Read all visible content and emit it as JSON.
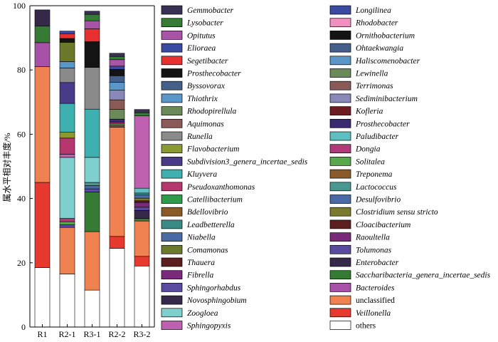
{
  "chart_data": {
    "type": "bar",
    "stacked": true,
    "xlabel": "",
    "ylabel": "属水平相对丰度/%",
    "ylim": [
      0,
      100
    ],
    "yticks": [
      0,
      20,
      40,
      60,
      80,
      100
    ],
    "categories": [
      "R1",
      "R2-1",
      "R3-1",
      "R2-2",
      "R3-2"
    ],
    "legend_position": "right",
    "series": [
      {
        "name": "others",
        "color": "#ffffff",
        "italic": false,
        "values": [
          18.5,
          16.5,
          11.5,
          24.5,
          19
        ]
      },
      {
        "name": "Veillonella",
        "color": "#e8392e",
        "italic": true,
        "values": [
          26.5,
          0,
          0,
          3.7,
          3
        ]
      },
      {
        "name": "unclassified",
        "color": "#f08150",
        "italic": false,
        "values": [
          36,
          14.5,
          18.2,
          34,
          11
        ]
      },
      {
        "name": "Bacteroides",
        "color": "#a851a8",
        "italic": true,
        "values": [
          7.5,
          0,
          0,
          0,
          0
        ]
      },
      {
        "name": "Saccharibacteria_genera_incertae_sedis",
        "color": "#357a35",
        "italic": true,
        "values": [
          5.2,
          0,
          12.3,
          0,
          0.8
        ]
      },
      {
        "name": "Enterobacter",
        "color": "#35284a",
        "italic": true,
        "values": [
          5,
          0,
          0,
          0,
          2.5
        ]
      },
      {
        "name": "Tolumonas",
        "color": "#5a4aa0",
        "italic": true,
        "values": [
          0,
          0.8,
          1,
          0,
          1
        ]
      },
      {
        "name": "Raoultella",
        "color": "#7a2a7a",
        "italic": true,
        "values": [
          0,
          0,
          0,
          0,
          1.5
        ]
      },
      {
        "name": "Cloacibacterium",
        "color": "#5c1e1e",
        "italic": true,
        "values": [
          0,
          0,
          0,
          0,
          0.5
        ]
      },
      {
        "name": "Clostridium sensu stricto",
        "color": "#7a7a2e",
        "italic": true,
        "values": [
          0,
          0,
          0,
          0,
          0.8
        ]
      },
      {
        "name": "Desulfovibrio",
        "color": "#4a6aa5",
        "italic": true,
        "values": [
          0,
          0,
          1,
          0,
          1
        ]
      },
      {
        "name": "Lactococcus",
        "color": "#4a9690",
        "italic": true,
        "values": [
          0,
          0,
          1,
          0,
          0.6
        ]
      },
      {
        "name": "Treponema",
        "color": "#8b5a2b",
        "italic": true,
        "values": [
          0,
          0,
          0,
          0.5,
          0
        ]
      },
      {
        "name": "Solitalea",
        "color": "#57a84a",
        "italic": true,
        "values": [
          0,
          1,
          0,
          0.5,
          0
        ]
      },
      {
        "name": "Dongia",
        "color": "#b23a7a",
        "italic": true,
        "values": [
          0,
          1,
          0,
          0.5,
          0
        ]
      },
      {
        "name": "Zoogloea",
        "color": "#7fcfcf",
        "italic": true,
        "values": [
          0,
          19,
          7.8,
          0,
          0
        ]
      },
      {
        "name": "Paludibacter",
        "color": "#5dbfbf",
        "italic": true,
        "values": [
          0,
          0,
          0,
          0,
          1.5
        ]
      },
      {
        "name": "Prosthecobacter",
        "color": "#3a2a70",
        "italic": true,
        "values": [
          0,
          0,
          0,
          1,
          0
        ]
      },
      {
        "name": "Kofleria",
        "color": "#6e1c22",
        "italic": true,
        "values": [
          0,
          0,
          0,
          0,
          0
        ]
      },
      {
        "name": "Sphingopyxis",
        "color": "#c060b0",
        "italic": true,
        "values": [
          0,
          1,
          0,
          0,
          22.5
        ]
      },
      {
        "name": "Pseudoxanthomonas",
        "color": "#b5376e",
        "italic": true,
        "values": [
          0,
          5,
          0,
          0,
          0
        ]
      },
      {
        "name": "Flavobacterium",
        "color": "#8a9a30",
        "italic": true,
        "values": [
          0,
          1.8,
          0,
          0,
          0
        ]
      },
      {
        "name": "Kluyvera",
        "color": "#3fb0b0",
        "italic": true,
        "values": [
          0,
          9,
          15,
          0,
          0
        ]
      },
      {
        "name": "Subdivision3_genera_incertae_sedis",
        "color": "#4a3a8a",
        "italic": true,
        "values": [
          0,
          6.5,
          0,
          0,
          0
        ]
      },
      {
        "name": "Rhodopirellula",
        "color": "#6a8a5a",
        "italic": true,
        "values": [
          0,
          0,
          0,
          3,
          0
        ]
      },
      {
        "name": "Aquimonas",
        "color": "#8a5a58",
        "italic": true,
        "values": [
          0,
          0,
          0,
          3,
          0
        ]
      },
      {
        "name": "Sediminibacterium",
        "color": "#8a88b8",
        "italic": true,
        "values": [
          0,
          0,
          0,
          3,
          0
        ]
      },
      {
        "name": "Runella",
        "color": "#8a8a8a",
        "italic": true,
        "values": [
          0,
          4.5,
          13,
          0,
          0
        ]
      },
      {
        "name": "Thiothrix",
        "color": "#5a96c8",
        "italic": true,
        "values": [
          0,
          2,
          0,
          2.5,
          0
        ]
      },
      {
        "name": "Comamonas",
        "color": "#6a7a2a",
        "italic": true,
        "values": [
          0,
          6,
          0,
          0,
          0
        ]
      },
      {
        "name": "Byssovorax",
        "color": "#44608a",
        "italic": true,
        "values": [
          0,
          0,
          0,
          2,
          0
        ]
      },
      {
        "name": "Prosthecobacter",
        "color": "#141414",
        "italic": true,
        "values": [
          0,
          1.2,
          8,
          2,
          0
        ]
      },
      {
        "name": "Segetibacter",
        "color": "#e83030",
        "italic": true,
        "values": [
          0,
          1.5,
          4,
          0,
          0
        ]
      },
      {
        "name": "Elioraea",
        "color": "#3a4aa0",
        "italic": true,
        "values": [
          0,
          0.8,
          0,
          1,
          0
        ]
      },
      {
        "name": "Opitutus",
        "color": "#a855a8",
        "italic": true,
        "values": [
          0,
          0,
          2.5,
          2,
          0
        ]
      },
      {
        "name": "Lysobacter",
        "color": "#357a35",
        "italic": true,
        "values": [
          0,
          0,
          2,
          1,
          1
        ]
      },
      {
        "name": "Gemmobacter",
        "color": "#3a3054",
        "italic": true,
        "values": [
          0,
          0,
          1,
          1,
          1
        ]
      }
    ],
    "legend": [
      {
        "name": "Gemmobacter",
        "color": "#3a3054",
        "italic": true
      },
      {
        "name": "Lysobacter",
        "color": "#357a35",
        "italic": true
      },
      {
        "name": "Opitutus",
        "color": "#a855a8",
        "italic": true
      },
      {
        "name": "Elioraea",
        "color": "#3a4aa0",
        "italic": true
      },
      {
        "name": "Segetibacter",
        "color": "#e83030",
        "italic": true
      },
      {
        "name": "Prosthecobacter",
        "color": "#141414",
        "italic": true
      },
      {
        "name": "Byssovorax",
        "color": "#44608a",
        "italic": true
      },
      {
        "name": "Thiothrix",
        "color": "#5a96c8",
        "italic": true
      },
      {
        "name": "Rhodopirellula",
        "color": "#6a8a5a",
        "italic": true
      },
      {
        "name": "Aquimonas",
        "color": "#8a5a58",
        "italic": true
      },
      {
        "name": "Runella",
        "color": "#8a8a8a",
        "italic": true
      },
      {
        "name": "Flavobacterium",
        "color": "#8a9a30",
        "italic": true
      },
      {
        "name": "Subdivision3_genera_incertae_sedis",
        "color": "#4a3a8a",
        "italic": true
      },
      {
        "name": "Kluyvera",
        "color": "#3fb0b0",
        "italic": true
      },
      {
        "name": "Pseudoxanthomonas",
        "color": "#b5376e",
        "italic": true
      },
      {
        "name": "Catellibacterium",
        "color": "#2e9a4a",
        "italic": true
      },
      {
        "name": "Bdellovibrio",
        "color": "#8a5a28",
        "italic": true
      },
      {
        "name": "Leadbetterella",
        "color": "#3a8a85",
        "italic": true
      },
      {
        "name": "Niabella",
        "color": "#4a6aa5",
        "italic": true
      },
      {
        "name": "Comamonas",
        "color": "#6a7a2a",
        "italic": true
      },
      {
        "name": "Thauera",
        "color": "#5c1e1e",
        "italic": true
      },
      {
        "name": "Fibrella",
        "color": "#7a2a7a",
        "italic": true
      },
      {
        "name": "Sphingorhabdus",
        "color": "#5a4aa0",
        "italic": true
      },
      {
        "name": "Novosphingobium",
        "color": "#35284a",
        "italic": true
      },
      {
        "name": "Zoogloea",
        "color": "#7fcfcf",
        "italic": true
      },
      {
        "name": "Sphingopyxis",
        "color": "#c060b0",
        "italic": true
      },
      {
        "name": "Longilinea",
        "color": "#3a4aa0",
        "italic": true
      },
      {
        "name": "Rhodobacter",
        "color": "#f090c0",
        "italic": true
      },
      {
        "name": "Ornithobacterium",
        "color": "#141414",
        "italic": true
      },
      {
        "name": "Ohtaekwangia",
        "color": "#44608a",
        "italic": true
      },
      {
        "name": "Haliscomenobacter",
        "color": "#5a96c8",
        "italic": true
      },
      {
        "name": "Lewinella",
        "color": "#6a8a5a",
        "italic": true
      },
      {
        "name": "Terrimonas",
        "color": "#8a5a58",
        "italic": true
      },
      {
        "name": "Sediminibacterium",
        "color": "#8a88b8",
        "italic": true
      },
      {
        "name": "Kofleria",
        "color": "#6e1c22",
        "italic": true
      },
      {
        "name": "Prosthecobacter",
        "color": "#3a2a70",
        "italic": true
      },
      {
        "name": "Paludibacter",
        "color": "#5dbfbf",
        "italic": true
      },
      {
        "name": "Dongia",
        "color": "#b23a7a",
        "italic": true
      },
      {
        "name": "Solitalea",
        "color": "#57a84a",
        "italic": true
      },
      {
        "name": "Treponema",
        "color": "#8b5a2b",
        "italic": true
      },
      {
        "name": "Lactococcus",
        "color": "#4a9690",
        "italic": true
      },
      {
        "name": "Desulfovibrio",
        "color": "#4a6aa5",
        "italic": true
      },
      {
        "name": "Clostridium sensu stricto",
        "color": "#7a7a2e",
        "italic": true
      },
      {
        "name": "Cloacibacterium",
        "color": "#5c1e1e",
        "italic": true
      },
      {
        "name": "Raoultella",
        "color": "#7a2a7a",
        "italic": true
      },
      {
        "name": "Tolumonas",
        "color": "#5a4aa0",
        "italic": true
      },
      {
        "name": "Enterobacter",
        "color": "#35284a",
        "italic": true
      },
      {
        "name": "Saccharibacteria_genera_incertae_sedis",
        "color": "#357a35",
        "italic": true
      },
      {
        "name": "Bacteroides",
        "color": "#a851a8",
        "italic": true
      },
      {
        "name": "unclassified",
        "color": "#f08150",
        "italic": false
      },
      {
        "name": "Veillonella",
        "color": "#e8392e",
        "italic": true
      },
      {
        "name": "others",
        "color": "#ffffff",
        "italic": false
      }
    ]
  }
}
